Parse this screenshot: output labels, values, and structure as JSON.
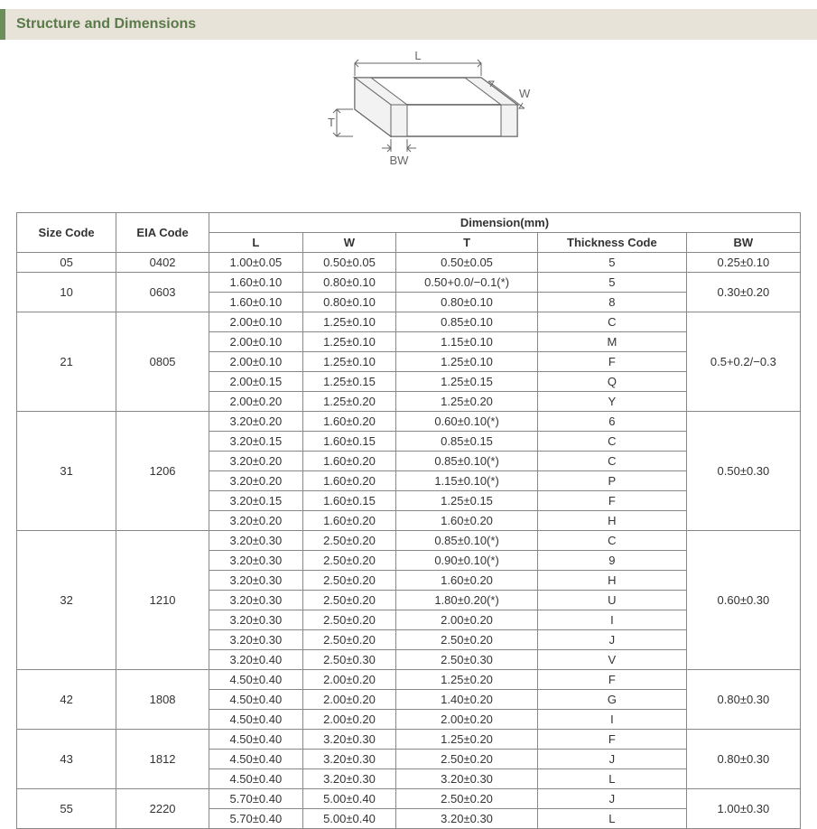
{
  "section_title": "Structure and Dimensions",
  "diagram": {
    "labels": {
      "L": "L",
      "W": "W",
      "T": "T",
      "BW": "BW"
    },
    "stroke": "#666666",
    "fill": "#ffffff"
  },
  "table": {
    "header": {
      "size_code": "Size Code",
      "eia_code": "EIA Code",
      "dimension": "Dimension(mm)",
      "L": "L",
      "W": "W",
      "T": "T",
      "thickness_code": "Thickness Code",
      "BW": "BW"
    },
    "groups": [
      {
        "size_code": "05",
        "eia_code": "0402",
        "bw": "0.25±0.10",
        "rows": [
          {
            "L": "1.00±0.05",
            "W": "0.50±0.05",
            "T": "0.50±0.05",
            "tc": "5"
          }
        ]
      },
      {
        "size_code": "10",
        "eia_code": "0603",
        "bw": "0.30±0.20",
        "rows": [
          {
            "L": "1.60±0.10",
            "W": "0.80±0.10",
            "T": "0.50+0.0/−0.1(*)",
            "tc": "5"
          },
          {
            "L": "1.60±0.10",
            "W": "0.80±0.10",
            "T": "0.80±0.10",
            "tc": "8"
          }
        ]
      },
      {
        "size_code": "21",
        "eia_code": "0805",
        "bw": "0.5+0.2/−0.3",
        "rows": [
          {
            "L": "2.00±0.10",
            "W": "1.25±0.10",
            "T": "0.85±0.10",
            "tc": "C"
          },
          {
            "L": "2.00±0.10",
            "W": "1.25±0.10",
            "T": "1.15±0.10",
            "tc": "M"
          },
          {
            "L": "2.00±0.10",
            "W": "1.25±0.10",
            "T": "1.25±0.10",
            "tc": "F"
          },
          {
            "L": "2.00±0.15",
            "W": "1.25±0.15",
            "T": "1.25±0.15",
            "tc": "Q"
          },
          {
            "L": "2.00±0.20",
            "W": "1.25±0.20",
            "T": "1.25±0.20",
            "tc": "Y"
          }
        ]
      },
      {
        "size_code": "31",
        "eia_code": "1206",
        "bw": "0.50±0.30",
        "rows": [
          {
            "L": "3.20±0.20",
            "W": "1.60±0.20",
            "T": "0.60±0.10(*)",
            "tc": "6"
          },
          {
            "L": "3.20±0.15",
            "W": "1.60±0.15",
            "T": "0.85±0.15",
            "tc": "C"
          },
          {
            "L": "3.20±0.20",
            "W": "1.60±0.20",
            "T": "0.85±0.10(*)",
            "tc": "C"
          },
          {
            "L": "3.20±0.20",
            "W": "1.60±0.20",
            "T": "1.15±0.10(*)",
            "tc": "P"
          },
          {
            "L": "3.20±0.15",
            "W": "1.60±0.15",
            "T": "1.25±0.15",
            "tc": "F"
          },
          {
            "L": "3.20±0.20",
            "W": "1.60±0.20",
            "T": "1.60±0.20",
            "tc": "H"
          }
        ]
      },
      {
        "size_code": "32",
        "eia_code": "1210",
        "bw": "0.60±0.30",
        "rows": [
          {
            "L": "3.20±0.30",
            "W": "2.50±0.20",
            "T": "0.85±0.10(*)",
            "tc": "C"
          },
          {
            "L": "3.20±0.30",
            "W": "2.50±0.20",
            "T": "0.90±0.10(*)",
            "tc": "9"
          },
          {
            "L": "3.20±0.30",
            "W": "2.50±0.20",
            "T": "1.60±0.20",
            "tc": "H"
          },
          {
            "L": "3.20±0.30",
            "W": "2.50±0.20",
            "T": "1.80±0.20(*)",
            "tc": "U"
          },
          {
            "L": "3.20±0.30",
            "W": "2.50±0.20",
            "T": "2.00±0.20",
            "tc": "I"
          },
          {
            "L": "3.20±0.30",
            "W": "2.50±0.20",
            "T": "2.50±0.20",
            "tc": "J"
          },
          {
            "L": "3.20±0.40",
            "W": "2.50±0.30",
            "T": "2.50±0.30",
            "tc": "V"
          }
        ]
      },
      {
        "size_code": "42",
        "eia_code": "1808",
        "bw": "0.80±0.30",
        "rows": [
          {
            "L": "4.50±0.40",
            "W": "2.00±0.20",
            "T": "1.25±0.20",
            "tc": "F"
          },
          {
            "L": "4.50±0.40",
            "W": "2.00±0.20",
            "T": "1.40±0.20",
            "tc": "G"
          },
          {
            "L": "4.50±0.40",
            "W": "2.00±0.20",
            "T": "2.00±0.20",
            "tc": "I"
          }
        ]
      },
      {
        "size_code": "43",
        "eia_code": "1812",
        "bw": "0.80±0.30",
        "rows": [
          {
            "L": "4.50±0.40",
            "W": "3.20±0.30",
            "T": "1.25±0.20",
            "tc": "F"
          },
          {
            "L": "4.50±0.40",
            "W": "3.20±0.30",
            "T": "2.50±0.20",
            "tc": "J"
          },
          {
            "L": "4.50±0.40",
            "W": "3.20±0.30",
            "T": "3.20±0.30",
            "tc": "L"
          }
        ]
      },
      {
        "size_code": "55",
        "eia_code": "2220",
        "bw": "1.00±0.30",
        "rows": [
          {
            "L": "5.70±0.40",
            "W": "5.00±0.40",
            "T": "2.50±0.20",
            "tc": "J"
          },
          {
            "L": "5.70±0.40",
            "W": "5.00±0.40",
            "T": "3.20±0.30",
            "tc": "L"
          }
        ]
      }
    ]
  }
}
